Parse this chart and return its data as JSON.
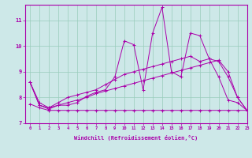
{
  "xlabel": "Windchill (Refroidissement éolien,°C)",
  "background_color": "#cde8e8",
  "grid_color": "#99ccbb",
  "line_color": "#aa00aa",
  "xlim": [
    -0.5,
    23
  ],
  "ylim": [
    7.0,
    11.6
  ],
  "yticks": [
    7,
    8,
    9,
    10,
    11
  ],
  "xticks": [
    0,
    1,
    2,
    3,
    4,
    5,
    6,
    7,
    8,
    9,
    10,
    11,
    12,
    13,
    14,
    15,
    16,
    17,
    18,
    19,
    20,
    21,
    22,
    23
  ],
  "series": [
    {
      "x": [
        0,
        1,
        2,
        3,
        4,
        5,
        6,
        7,
        8,
        9,
        10,
        11,
        12,
        13,
        14,
        15,
        16,
        17,
        18,
        19,
        20,
        21,
        22,
        23
      ],
      "y": [
        8.6,
        7.7,
        7.55,
        7.7,
        7.7,
        7.8,
        8.05,
        8.2,
        8.3,
        8.8,
        10.2,
        10.05,
        8.3,
        10.5,
        11.5,
        9.0,
        8.8,
        10.5,
        10.4,
        9.5,
        8.8,
        7.9,
        7.8,
        7.5
      ]
    },
    {
      "x": [
        0,
        1,
        2,
        3,
        4,
        5,
        6,
        7,
        8,
        9,
        10,
        11,
        12,
        13,
        14,
        15,
        16,
        17,
        18,
        19,
        20,
        21,
        22,
        23
      ],
      "y": [
        8.6,
        7.7,
        7.6,
        7.8,
        8.0,
        8.1,
        8.2,
        8.3,
        8.5,
        8.7,
        8.9,
        9.0,
        9.1,
        9.2,
        9.3,
        9.4,
        9.5,
        9.6,
        9.4,
        9.5,
        9.4,
        8.8,
        8.0,
        7.5
      ]
    },
    {
      "x": [
        0,
        1,
        2,
        3,
        4,
        5,
        6,
        7,
        8,
        9,
        10,
        11,
        12,
        13,
        14,
        15,
        16,
        17,
        18,
        19,
        20,
        21,
        22,
        23
      ],
      "y": [
        8.6,
        7.8,
        7.6,
        7.7,
        7.8,
        7.9,
        8.0,
        8.15,
        8.25,
        8.35,
        8.45,
        8.55,
        8.65,
        8.75,
        8.85,
        8.95,
        9.05,
        9.15,
        9.25,
        9.35,
        9.45,
        9.0,
        8.0,
        7.5
      ]
    },
    {
      "x": [
        0,
        1,
        2,
        3,
        4,
        5,
        6,
        7,
        8,
        9,
        10,
        11,
        12,
        13,
        14,
        15,
        16,
        17,
        18,
        19,
        20,
        21,
        22,
        23
      ],
      "y": [
        7.75,
        7.6,
        7.5,
        7.5,
        7.5,
        7.5,
        7.5,
        7.5,
        7.5,
        7.5,
        7.5,
        7.5,
        7.5,
        7.5,
        7.5,
        7.5,
        7.5,
        7.5,
        7.5,
        7.5,
        7.5,
        7.5,
        7.5,
        7.5
      ]
    }
  ]
}
